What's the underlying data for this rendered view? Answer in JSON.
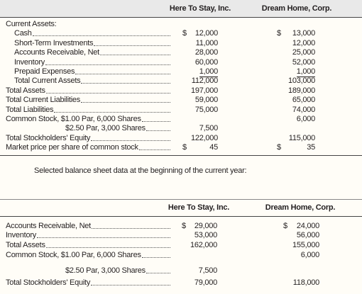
{
  "table1": {
    "headers": [
      "Here To Stay, Inc.",
      "Dream Home, Corp."
    ],
    "rows": [
      {
        "label": "Current Assets:",
        "cells": [
          null,
          null
        ]
      },
      {
        "label": "Cash",
        "cells": [
          {
            "symbol": "$",
            "amount": "12,000"
          },
          {
            "symbol": "$",
            "amount": "13,000"
          }
        ]
      },
      {
        "label": "Short-Term Investments",
        "cells": [
          "11,000",
          "12,000"
        ]
      },
      {
        "label": "Accounts Receivable, Net",
        "cells": [
          "28,000",
          "25,000"
        ]
      },
      {
        "label": "Inventory",
        "cells": [
          "60,000",
          "52,000"
        ]
      },
      {
        "label": "Prepaid Expenses",
        "cells": [
          "1,000",
          "1,000"
        ]
      },
      {
        "label": "Total Current Assets",
        "cells": [
          "112,000",
          "103,000"
        ]
      },
      {
        "label": "Total Assets",
        "cells": [
          "197,000",
          "189,000"
        ]
      },
      {
        "label": "Total Current Liabilities",
        "cells": [
          "59,000",
          "65,000"
        ]
      },
      {
        "label": "Total Liabilities",
        "cells": [
          "75,000",
          "74,000"
        ]
      },
      {
        "label": "Common Stock, $1.00 Par, 6,000 Shares",
        "cells": [
          null,
          "6,000"
        ]
      },
      {
        "label": "$2.50 Par, 3,000 Shares",
        "cells": [
          "7,500",
          null
        ]
      },
      {
        "label": "Total Stockholders' Equity",
        "cells": [
          "122,000",
          "115,000"
        ]
      },
      {
        "label": "Market price per share of common stock",
        "cells": [
          {
            "symbol": "$",
            "amount": "45"
          },
          {
            "symbol": "$",
            "amount": "35"
          }
        ]
      }
    ]
  },
  "note": "Selected balance sheet data at the beginning of the current year:",
  "table2": {
    "headers": [
      "Here To Stay, Inc.",
      "Dream Home, Corp."
    ],
    "rows": [
      {
        "label": "Accounts Receivable, Net",
        "cells": [
          {
            "symbol": "$",
            "amount": "29,000"
          },
          {
            "symbol": "$",
            "amount": "24,000"
          }
        ]
      },
      {
        "label": "Inventory",
        "cells": [
          "53,000",
          "56,000"
        ]
      },
      {
        "label": "Total Assets",
        "cells": [
          "162,000",
          "155,000"
        ]
      },
      {
        "label": "Common Stock, $1.00 Par, 6,000 Shares",
        "cells": [
          null,
          "6,000"
        ]
      },
      {
        "label": "$2.50 Par, 3,000 Shares",
        "cells": [
          "7,500",
          null
        ]
      },
      {
        "label": "Total Stockholders' Equity",
        "cells": [
          "79,000",
          "118,000"
        ]
      }
    ]
  }
}
